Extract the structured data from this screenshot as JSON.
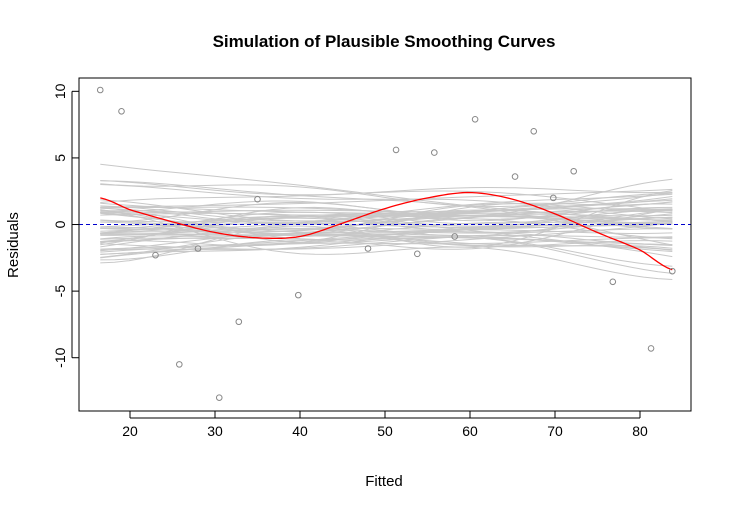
{
  "chart_data": {
    "type": "line",
    "title": "Simulation of Plausible Smoothing Curves",
    "xlabel": "Fitted",
    "ylabel": "Residuals",
    "xlim": [
      14,
      86
    ],
    "ylim": [
      -14,
      11
    ],
    "xticks": [
      "20",
      "30",
      "40",
      "50",
      "60",
      "70",
      "80"
    ],
    "yticks": [
      "-10",
      "-5",
      "0",
      "5",
      "10"
    ],
    "reference_line": {
      "y": 0,
      "color": "#0000cc",
      "style": "dashed"
    },
    "points": {
      "color": "#888888",
      "x": [
        16.5,
        19,
        23,
        25.8,
        28,
        30.5,
        32.8,
        35,
        39.8,
        48,
        51.3,
        53.8,
        55.8,
        58.2,
        60.6,
        65.3,
        67.5,
        69.8,
        72.2,
        76.8,
        81.3,
        83.8
      ],
      "y": [
        10.1,
        8.5,
        -2.3,
        -10.5,
        -1.8,
        -13,
        -7.3,
        1.9,
        -5.3,
        -1.8,
        5.6,
        -2.2,
        5.4,
        -0.9,
        7.9,
        3.6,
        7.0,
        2.0,
        4.0,
        -4.3,
        -9.3,
        -3.5
      ]
    },
    "fitted_curve": {
      "color": "#ff0000",
      "x": [
        16.5,
        20,
        25,
        30,
        35,
        40,
        45,
        50,
        55,
        60,
        65,
        70,
        75,
        80,
        83.8
      ],
      "y": [
        2.0,
        1.1,
        0.2,
        -0.6,
        -1.0,
        -0.9,
        0.1,
        1.2,
        2.0,
        2.4,
        1.9,
        0.8,
        -0.6,
        -1.9,
        -3.4
      ]
    },
    "simulated_curves": {
      "color": "#c8c8c8",
      "count": 60,
      "x_range": [
        16.5,
        83.8
      ]
    }
  }
}
